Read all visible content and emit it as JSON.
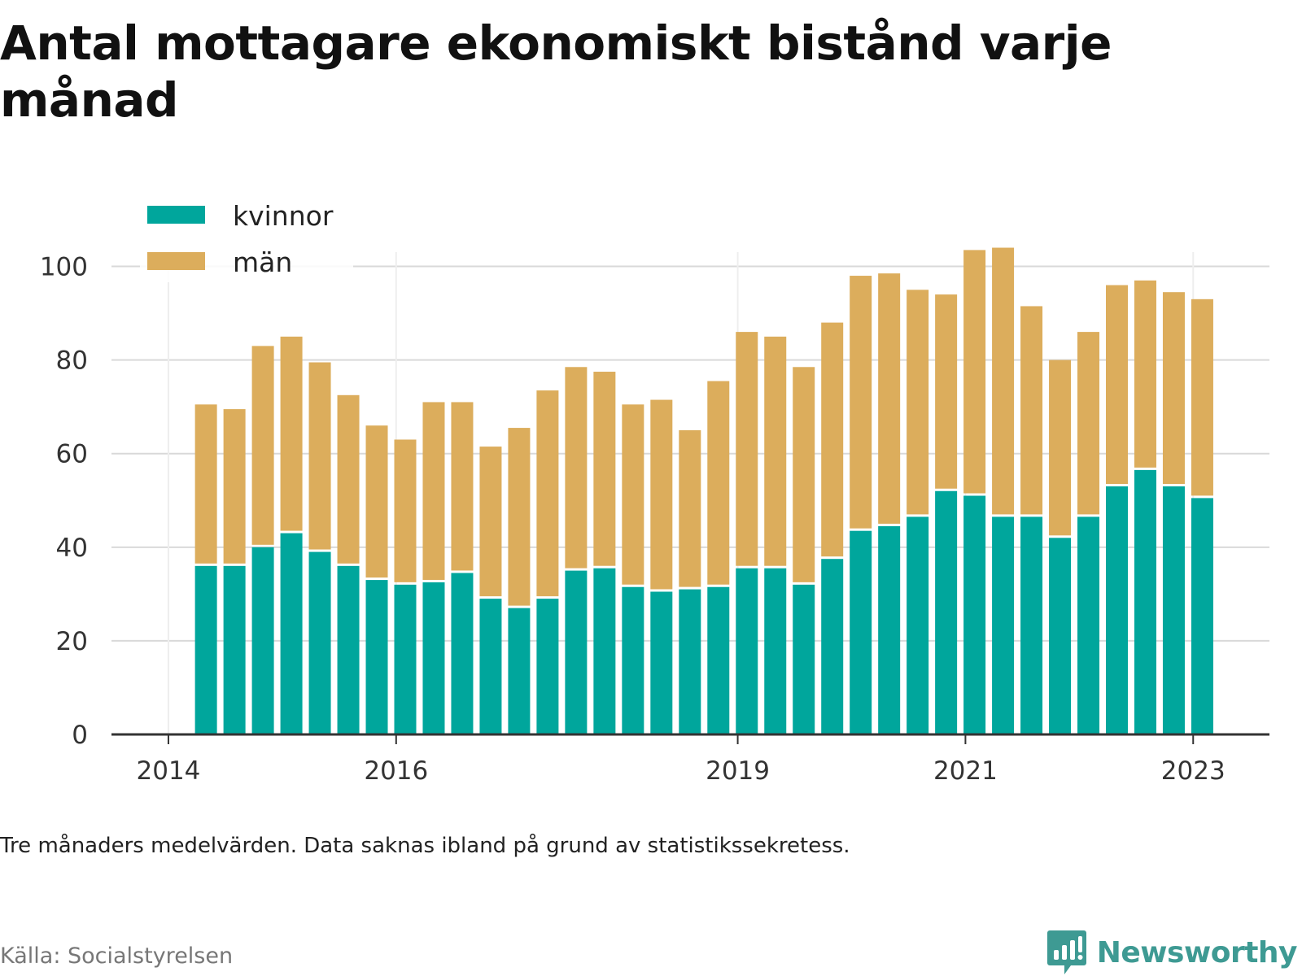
{
  "title": "Antal mottagare ekonomiskt bistånd varje månad",
  "note": "Tre månaders medelvärden. Data saknas ibland på grund av statistikssekretess.",
  "source": "Källa: Socialstyrelsen",
  "brand": {
    "name": "Newsworthy",
    "icon": "newsworthy-logo-icon",
    "color": "#3e9a93"
  },
  "colors": {
    "kvinnor": "#00a69c",
    "man": "#dcad5c",
    "grid": "#d9d9d9",
    "axis": "#333333"
  },
  "chart_data": {
    "type": "bar",
    "stacked": true,
    "title": "Antal mottagare ekonomiskt bistånd varje månad",
    "xlabel": "",
    "ylabel": "",
    "ylim": [
      0,
      110
    ],
    "y_ticks": [
      0,
      20,
      40,
      60,
      80,
      100
    ],
    "x_ticks": [
      {
        "label": "2014",
        "x": 2014.0
      },
      {
        "label": "2016",
        "x": 2016.0
      },
      {
        "label": "2019",
        "x": 2019.0
      },
      {
        "label": "2021",
        "x": 2021.0
      },
      {
        "label": "2023",
        "x": 2023.0
      }
    ],
    "xlim": [
      2013.5,
      2023.67
    ],
    "grid": true,
    "legend_position": "top-left",
    "x": [
      2014.33,
      2014.58,
      2014.83,
      2015.08,
      2015.33,
      2015.58,
      2015.83,
      2016.08,
      2016.33,
      2016.58,
      2016.83,
      2017.08,
      2017.33,
      2017.58,
      2017.83,
      2018.08,
      2018.33,
      2018.58,
      2018.83,
      2019.08,
      2019.33,
      2019.58,
      2019.83,
      2020.08,
      2020.33,
      2020.58,
      2020.83,
      2021.08,
      2021.33,
      2021.58,
      2021.83,
      2022.08,
      2022.33,
      2022.58,
      2022.83,
      2023.08
    ],
    "series": [
      {
        "name": "kvinnor",
        "values": [
          36,
          36,
          40,
          43,
          39,
          36,
          33,
          32,
          32.5,
          34.5,
          29,
          27,
          29,
          35,
          35.5,
          31.5,
          30.5,
          31,
          31.5,
          35.5,
          35.5,
          32,
          37.5,
          43.5,
          44.5,
          46.5,
          52,
          51,
          46.5,
          46.5,
          42,
          46.5,
          53,
          56.5,
          53,
          50.5
        ]
      },
      {
        "name": "män",
        "values": [
          34.5,
          33.5,
          43,
          42,
          40.5,
          36.5,
          33,
          31,
          38.5,
          36.5,
          32.5,
          38.5,
          44.5,
          43.5,
          42,
          39,
          41,
          34,
          44,
          50.5,
          49.5,
          46.5,
          50.5,
          54.5,
          54,
          48.5,
          42,
          52.5,
          57.5,
          45,
          38,
          39.5,
          43,
          40.5,
          41.5,
          42.5
        ]
      }
    ]
  }
}
